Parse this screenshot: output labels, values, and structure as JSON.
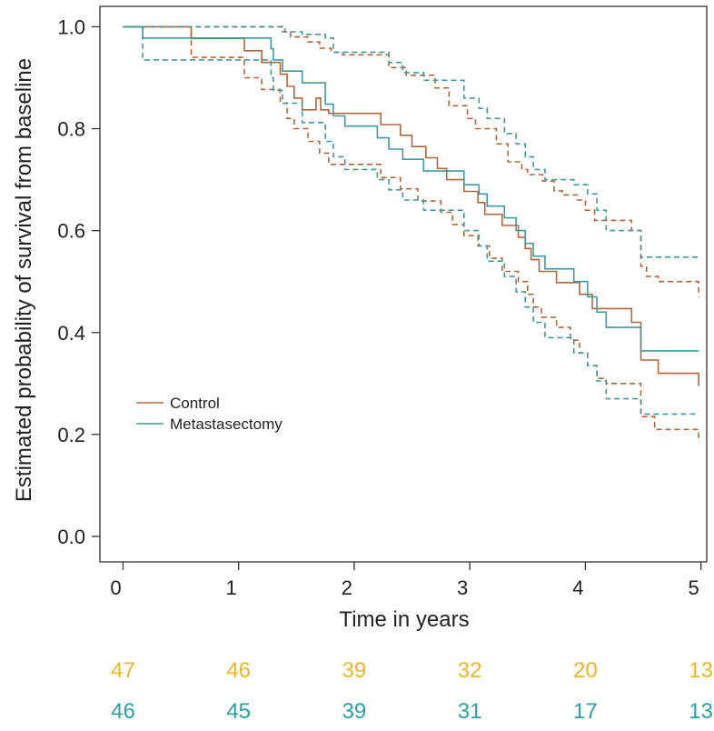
{
  "chart_data": {
    "type": "line",
    "xlabel": "Time in years",
    "ylabel": "Estimated probability of survival from baseline",
    "xlim": [
      -0.2,
      5.05
    ],
    "ylim": [
      -0.05,
      1.04
    ],
    "xticks": [
      0,
      1,
      2,
      3,
      4,
      5
    ],
    "xtick_labels": [
      "0",
      "1",
      "2",
      "3",
      "4",
      "5"
    ],
    "yticks": [
      0.0,
      0.2,
      0.4,
      0.6,
      0.8,
      1.0
    ],
    "ytick_labels": [
      "0.0",
      "0.2",
      "0.4",
      "0.6",
      "0.8",
      "1.0"
    ],
    "grid": false,
    "legend_position": "lower-left",
    "series": [
      {
        "name": "Control",
        "color": "#b5653a",
        "style": "step",
        "x": [
          0,
          0.59,
          1.05,
          1.2,
          1.36,
          1.42,
          1.48,
          1.55,
          1.67,
          1.71,
          1.78,
          2.23,
          2.4,
          2.5,
          2.62,
          2.72,
          2.8,
          2.87,
          2.95,
          3.07,
          3.13,
          3.28,
          3.42,
          3.48,
          3.53,
          3.6,
          3.75,
          3.87,
          3.95,
          4.02,
          4.06,
          4.13,
          4.4,
          4.48,
          4.52,
          4.63,
          4.98
        ],
        "y": [
          1.0,
          0.977,
          0.953,
          0.93,
          0.907,
          0.883,
          0.86,
          0.837,
          0.86,
          0.837,
          0.83,
          0.808,
          0.787,
          0.765,
          0.743,
          0.722,
          0.7,
          0.7,
          0.677,
          0.655,
          0.632,
          0.61,
          0.587,
          0.565,
          0.543,
          0.52,
          0.498,
          0.498,
          0.475,
          0.475,
          0.447,
          0.447,
          0.42,
          0.346,
          0.346,
          0.32,
          0.295
        ]
      },
      {
        "name": "Control upper 95% CI",
        "color": "#b5653a",
        "style": "step-dashed",
        "x": [
          0,
          0.59,
          1.38,
          1.45,
          1.6,
          1.7,
          1.8,
          1.9,
          2.0,
          2.3,
          2.45,
          2.7,
          2.82,
          2.98,
          3.05,
          3.23,
          3.33,
          3.45,
          3.5,
          3.63,
          3.73,
          3.8,
          3.93,
          4.0,
          4.08,
          4.2,
          4.4,
          4.48,
          4.53,
          4.63,
          4.98
        ],
        "y": [
          1.0,
          1.0,
          0.99,
          0.98,
          0.97,
          0.958,
          0.95,
          0.945,
          0.945,
          0.92,
          0.905,
          0.88,
          0.845,
          0.82,
          0.8,
          0.77,
          0.735,
          0.72,
          0.71,
          0.697,
          0.678,
          0.67,
          0.66,
          0.64,
          0.62,
          0.62,
          0.6,
          0.53,
          0.51,
          0.5,
          0.47
        ]
      },
      {
        "name": "Control lower 95% CI",
        "color": "#b5653a",
        "style": "step-dashed",
        "x": [
          0,
          0.59,
          1.05,
          1.2,
          1.36,
          1.42,
          1.48,
          1.6,
          1.7,
          1.78,
          2.23,
          2.4,
          2.55,
          2.75,
          2.85,
          2.95,
          3.07,
          3.17,
          3.28,
          3.42,
          3.5,
          3.55,
          3.62,
          3.75,
          3.87,
          3.95,
          4.02,
          4.1,
          4.18,
          4.45,
          4.48,
          4.6,
          4.98
        ],
        "y": [
          1.0,
          0.94,
          0.9,
          0.877,
          0.85,
          0.82,
          0.8,
          0.775,
          0.752,
          0.73,
          0.704,
          0.682,
          0.658,
          0.636,
          0.612,
          0.59,
          0.57,
          0.546,
          0.52,
          0.5,
          0.475,
          0.45,
          0.43,
          0.41,
          0.385,
          0.36,
          0.335,
          0.31,
          0.3,
          0.3,
          0.235,
          0.21,
          0.185
        ]
      },
      {
        "name": "Metastasectomy",
        "color": "#3f9aa0",
        "style": "step",
        "x": [
          0,
          0.17,
          1.28,
          1.3,
          1.38,
          1.55,
          1.75,
          1.82,
          1.92,
          2.2,
          2.3,
          2.42,
          2.6,
          2.95,
          3.08,
          3.15,
          3.3,
          3.4,
          3.48,
          3.55,
          3.65,
          3.9,
          4.02,
          4.1,
          4.18,
          4.48,
          4.98
        ],
        "y": [
          1.0,
          0.978,
          0.957,
          0.935,
          0.913,
          0.89,
          0.848,
          0.825,
          0.805,
          0.782,
          0.76,
          0.74,
          0.717,
          0.69,
          0.672,
          0.648,
          0.625,
          0.6,
          0.575,
          0.55,
          0.525,
          0.5,
          0.47,
          0.44,
          0.41,
          0.364,
          0.364
        ]
      },
      {
        "name": "Metastasectomy upper 95% CI",
        "color": "#3f9aa0",
        "style": "step-dashed",
        "x": [
          0,
          0.17,
          1.28,
          1.4,
          1.55,
          1.75,
          1.82,
          2.3,
          2.42,
          2.6,
          2.95,
          3.08,
          3.15,
          3.3,
          3.4,
          3.48,
          3.55,
          3.65,
          3.9,
          4.02,
          4.1,
          4.18,
          4.48,
          4.98
        ],
        "y": [
          1.0,
          1.0,
          1.0,
          0.99,
          0.985,
          0.978,
          0.95,
          0.93,
          0.91,
          0.895,
          0.86,
          0.84,
          0.82,
          0.79,
          0.77,
          0.745,
          0.72,
          0.7,
          0.69,
          0.672,
          0.64,
          0.6,
          0.548,
          0.548
        ]
      },
      {
        "name": "Metastasectomy lower 95% CI",
        "color": "#3f9aa0",
        "style": "step-dashed",
        "x": [
          0,
          0.17,
          1.28,
          1.3,
          1.38,
          1.55,
          1.75,
          1.82,
          1.92,
          2.2,
          2.3,
          2.42,
          2.6,
          2.95,
          3.08,
          3.15,
          3.3,
          3.4,
          3.48,
          3.55,
          3.65,
          3.9,
          4.02,
          4.1,
          4.18,
          4.48,
          4.98
        ],
        "y": [
          1.0,
          0.935,
          0.9,
          0.875,
          0.85,
          0.812,
          0.775,
          0.745,
          0.72,
          0.7,
          0.68,
          0.66,
          0.64,
          0.6,
          0.57,
          0.54,
          0.51,
          0.48,
          0.45,
          0.42,
          0.39,
          0.36,
          0.335,
          0.305,
          0.27,
          0.24,
          0.24
        ]
      }
    ],
    "legend": [
      {
        "label": "Control",
        "color": "#b5653a"
      },
      {
        "label": "Metastasectomy",
        "color": "#3f9aa0"
      }
    ],
    "number_at_risk": {
      "times": [
        0,
        1,
        2,
        3,
        4,
        5
      ],
      "rows": [
        {
          "color": "#f2b522",
          "values": [
            "47",
            "46",
            "39",
            "32",
            "20",
            "13"
          ]
        },
        {
          "color": "#27a1a8",
          "values": [
            "46",
            "45",
            "39",
            "31",
            "17",
            "13"
          ]
        }
      ]
    }
  }
}
